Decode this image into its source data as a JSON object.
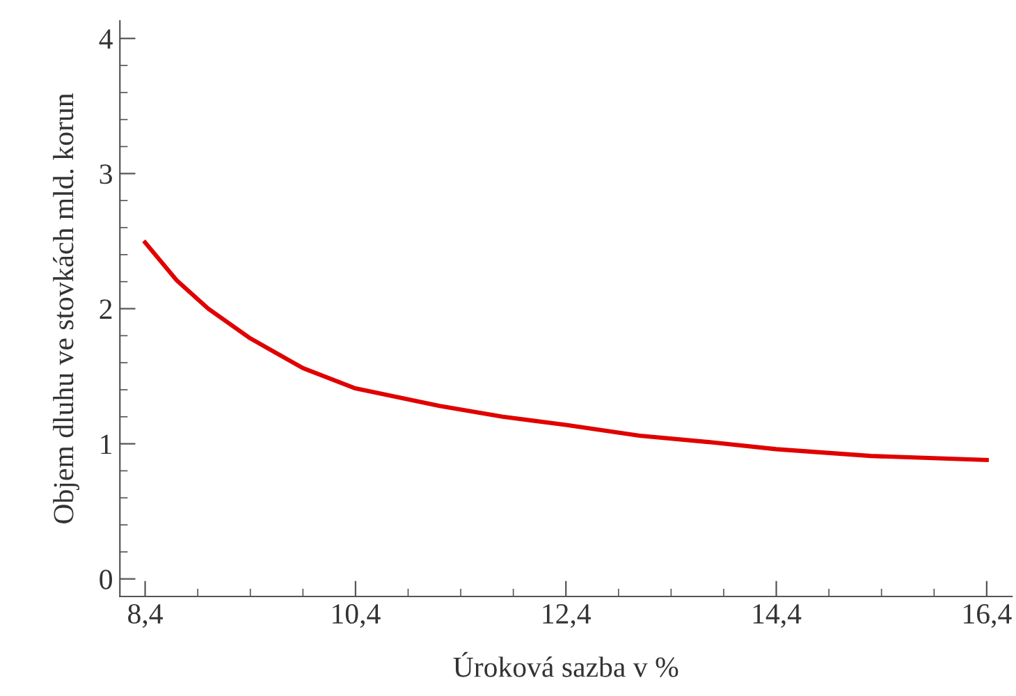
{
  "chart_data": {
    "type": "line",
    "xlabel": "Úroková sazba v %",
    "ylabel": "Objem dluhu ve stovkách mld. korun",
    "x": [
      8.4,
      8.7,
      9.0,
      9.4,
      9.9,
      10.4,
      11.2,
      11.8,
      12.4,
      13.1,
      13.8,
      14.4,
      15.3,
      16.4
    ],
    "series": [
      {
        "color": "#e00000",
        "values": [
          2.49,
          2.21,
          2.0,
          1.78,
          1.56,
          1.41,
          1.28,
          1.2,
          1.14,
          1.06,
          1.01,
          0.96,
          0.91,
          0.88
        ]
      }
    ],
    "xlim": [
      8.16,
      16.64
    ],
    "ylim": [
      -0.13,
      4.13
    ],
    "xticks": [
      {
        "value": 8.4,
        "label": "8,4"
      },
      {
        "value": 10.4,
        "label": "10,4"
      },
      {
        "value": 12.4,
        "label": "12,4"
      },
      {
        "value": 14.4,
        "label": "14,4"
      },
      {
        "value": 16.4,
        "label": "16,4"
      }
    ],
    "yticks": [
      0,
      1,
      2,
      3,
      4
    ],
    "grid": false,
    "legend": false,
    "marker": "none",
    "line_style": "solid"
  }
}
